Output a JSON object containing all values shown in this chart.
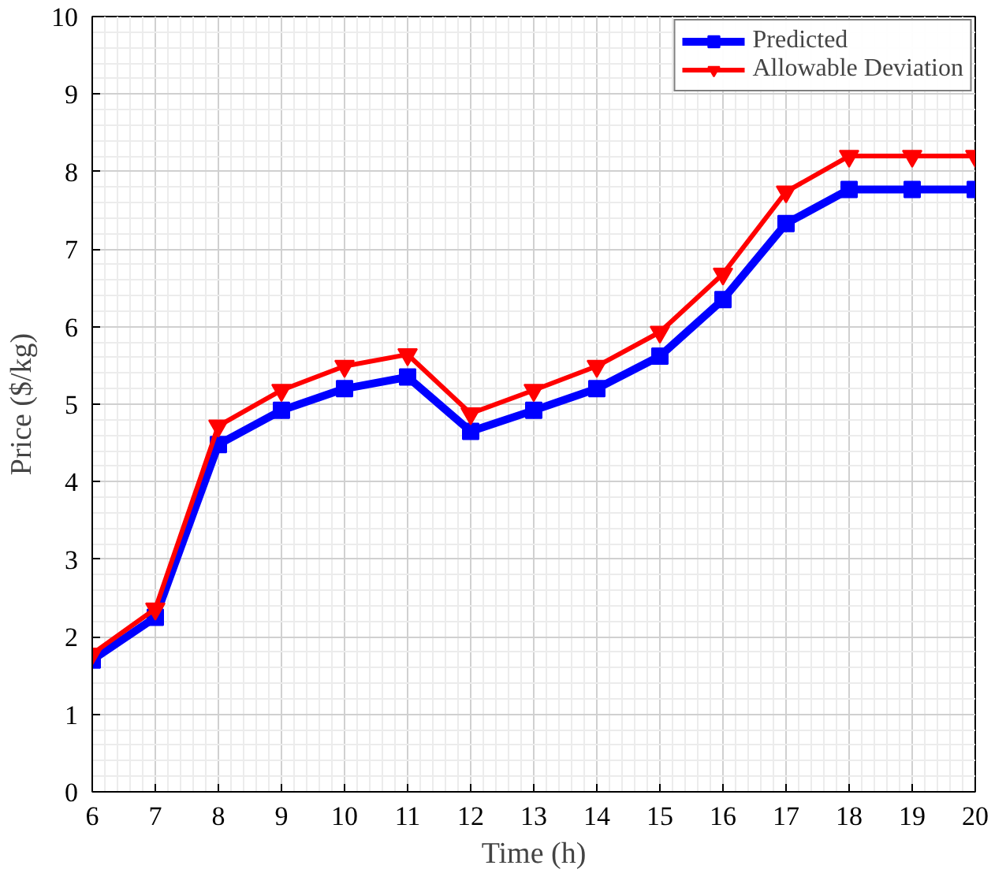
{
  "chart_data": {
    "type": "line",
    "xlabel": "Time (h)",
    "ylabel": "Price ($/kg)",
    "x": [
      6,
      7,
      8,
      9,
      10,
      11,
      12,
      13,
      14,
      15,
      16,
      17,
      18,
      19,
      20
    ],
    "series": [
      {
        "name": "Predicted",
        "color": "#0000ff",
        "marker": "square",
        "values": [
          1.7,
          2.25,
          4.48,
          4.92,
          5.2,
          5.35,
          4.65,
          4.92,
          5.2,
          5.62,
          6.35,
          7.33,
          7.77,
          7.77,
          7.77
        ]
      },
      {
        "name": "Allowable Deviation",
        "color": "#ff0000",
        "marker": "triangle",
        "values": [
          1.78,
          2.36,
          4.72,
          5.18,
          5.49,
          5.64,
          4.88,
          5.18,
          5.49,
          5.93,
          6.68,
          7.74,
          8.2,
          8.2,
          8.2
        ]
      }
    ],
    "xlim": [
      6,
      20
    ],
    "xticks": [
      6,
      7,
      8,
      9,
      10,
      11,
      12,
      13,
      14,
      15,
      16,
      17,
      18,
      19,
      20
    ],
    "ylim": [
      0,
      10
    ],
    "yticks": [
      0,
      1,
      2,
      3,
      4,
      5,
      6,
      7,
      8,
      9,
      10
    ],
    "grid": true,
    "legend": "top right",
    "line_style": "solid"
  }
}
